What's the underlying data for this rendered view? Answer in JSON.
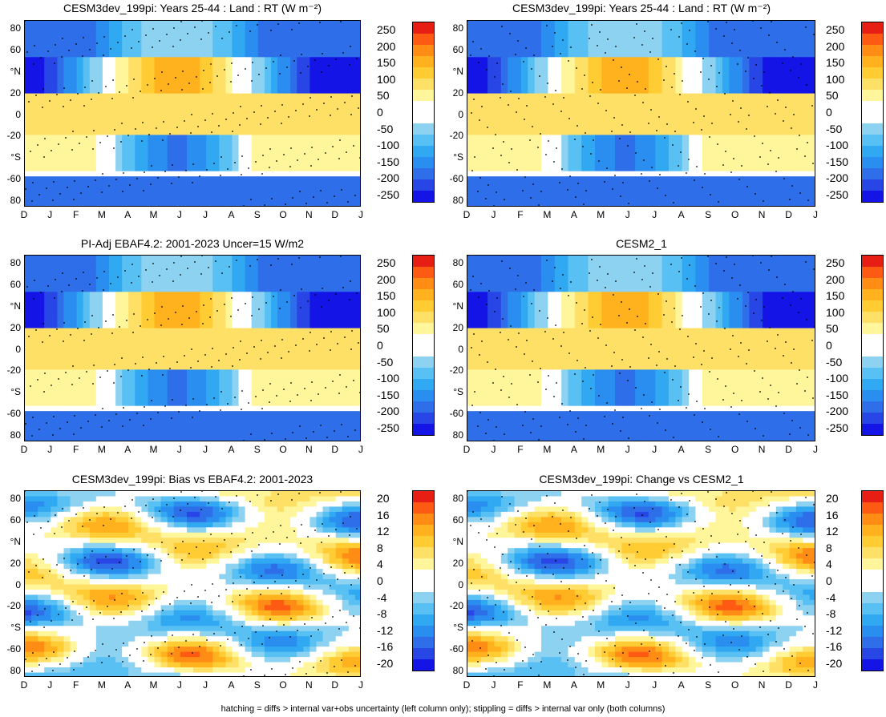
{
  "footer": "hatching = diffs > internal var+obs uncertainty (left column only); stippling = diffs > internal var only (both columns)",
  "chart_data": [
    {
      "type": "heatmap",
      "title": "CESM3dev_199pi: Years 25-44 : Land : RT (W m⁻²)",
      "x_tick_labels": [
        "D",
        "J",
        "F",
        "M",
        "A",
        "M",
        "J",
        "J",
        "A",
        "S",
        "O",
        "N",
        "D",
        "J"
      ],
      "y_tick_labels": [
        "80",
        "60",
        "°N",
        "20",
        "0",
        "-20",
        "°S",
        "-60",
        "80"
      ],
      "colorbar_labels": [
        "250",
        "200",
        "150",
        "100",
        "50",
        "0",
        "-50",
        "-100",
        "-150",
        "-200",
        "-250"
      ],
      "description_values": {
        "summer_hemisphere_max": 150,
        "winter_polar_min": -250
      }
    },
    {
      "type": "heatmap",
      "title": "CESM3dev_199pi: Years 25-44 : Land : RT (W m⁻²)",
      "x_tick_labels": [
        "D",
        "J",
        "F",
        "M",
        "A",
        "M",
        "J",
        "J",
        "A",
        "S",
        "O",
        "N",
        "D",
        "J"
      ],
      "y_tick_labels": [
        "80",
        "60",
        "°N",
        "20",
        "0",
        "-20",
        "°S",
        "-60",
        "80"
      ],
      "colorbar_labels": [
        "250",
        "200",
        "150",
        "100",
        "50",
        "0",
        "-50",
        "-100",
        "-150",
        "-200",
        "-250"
      ]
    },
    {
      "type": "heatmap",
      "title": "PI-Adj EBAF4.2: 2001-2023 Uncer=15 W/m2",
      "x_tick_labels": [
        "D",
        "J",
        "F",
        "M",
        "A",
        "M",
        "J",
        "J",
        "A",
        "S",
        "O",
        "N",
        "D",
        "J"
      ],
      "y_tick_labels": [
        "80",
        "60",
        "°N",
        "20",
        "0",
        "-20",
        "°S",
        "-60",
        "80"
      ],
      "colorbar_labels": [
        "250",
        "200",
        "150",
        "100",
        "50",
        "0",
        "-50",
        "-100",
        "-150",
        "-200",
        "-250"
      ]
    },
    {
      "type": "heatmap",
      "title": "CESM2_1",
      "x_tick_labels": [
        "D",
        "J",
        "F",
        "M",
        "A",
        "M",
        "J",
        "J",
        "A",
        "S",
        "O",
        "N",
        "D",
        "J"
      ],
      "y_tick_labels": [
        "80",
        "60",
        "°N",
        "20",
        "0",
        "-20",
        "°S",
        "-60",
        "80"
      ],
      "colorbar_labels": [
        "250",
        "200",
        "150",
        "100",
        "50",
        "0",
        "-50",
        "-100",
        "-150",
        "-200",
        "-250"
      ]
    },
    {
      "type": "heatmap",
      "title": "CESM3dev_199pi: Bias vs EBAF4.2: 2001-2023",
      "x_tick_labels": [
        "D",
        "J",
        "F",
        "M",
        "A",
        "M",
        "J",
        "J",
        "A",
        "S",
        "O",
        "N",
        "D",
        "J"
      ],
      "y_tick_labels": [
        "80",
        "60",
        "°N",
        "20",
        "0",
        "-20",
        "°S",
        "-60",
        "80"
      ],
      "colorbar_labels": [
        "20",
        "16",
        "12",
        "8",
        "4",
        "0",
        "-4",
        "-8",
        "-12",
        "-16",
        "-20"
      ]
    },
    {
      "type": "heatmap",
      "title": "CESM3dev_199pi: Change vs CESM2_1",
      "x_tick_labels": [
        "D",
        "J",
        "F",
        "M",
        "A",
        "M",
        "J",
        "J",
        "A",
        "S",
        "O",
        "N",
        "D",
        "J"
      ],
      "y_tick_labels": [
        "80",
        "60",
        "°N",
        "20",
        "0",
        "-20",
        "°S",
        "-60",
        "80"
      ],
      "colorbar_labels": [
        "20",
        "16",
        "12",
        "8",
        "4",
        "0",
        "-4",
        "-8",
        "-12",
        "-16",
        "-20"
      ]
    }
  ],
  "colors": {
    "palette": [
      "#1414e6",
      "#2846e6",
      "#2e6ee8",
      "#2a8ef0",
      "#30a8f2",
      "#58c0f2",
      "#8ed2f2",
      "#ffffff",
      "#ffffff",
      "#fff59a",
      "#ffe066",
      "#ffcc33",
      "#ffb21e",
      "#ff8c14",
      "#ff5a14",
      "#e61e14"
    ]
  }
}
